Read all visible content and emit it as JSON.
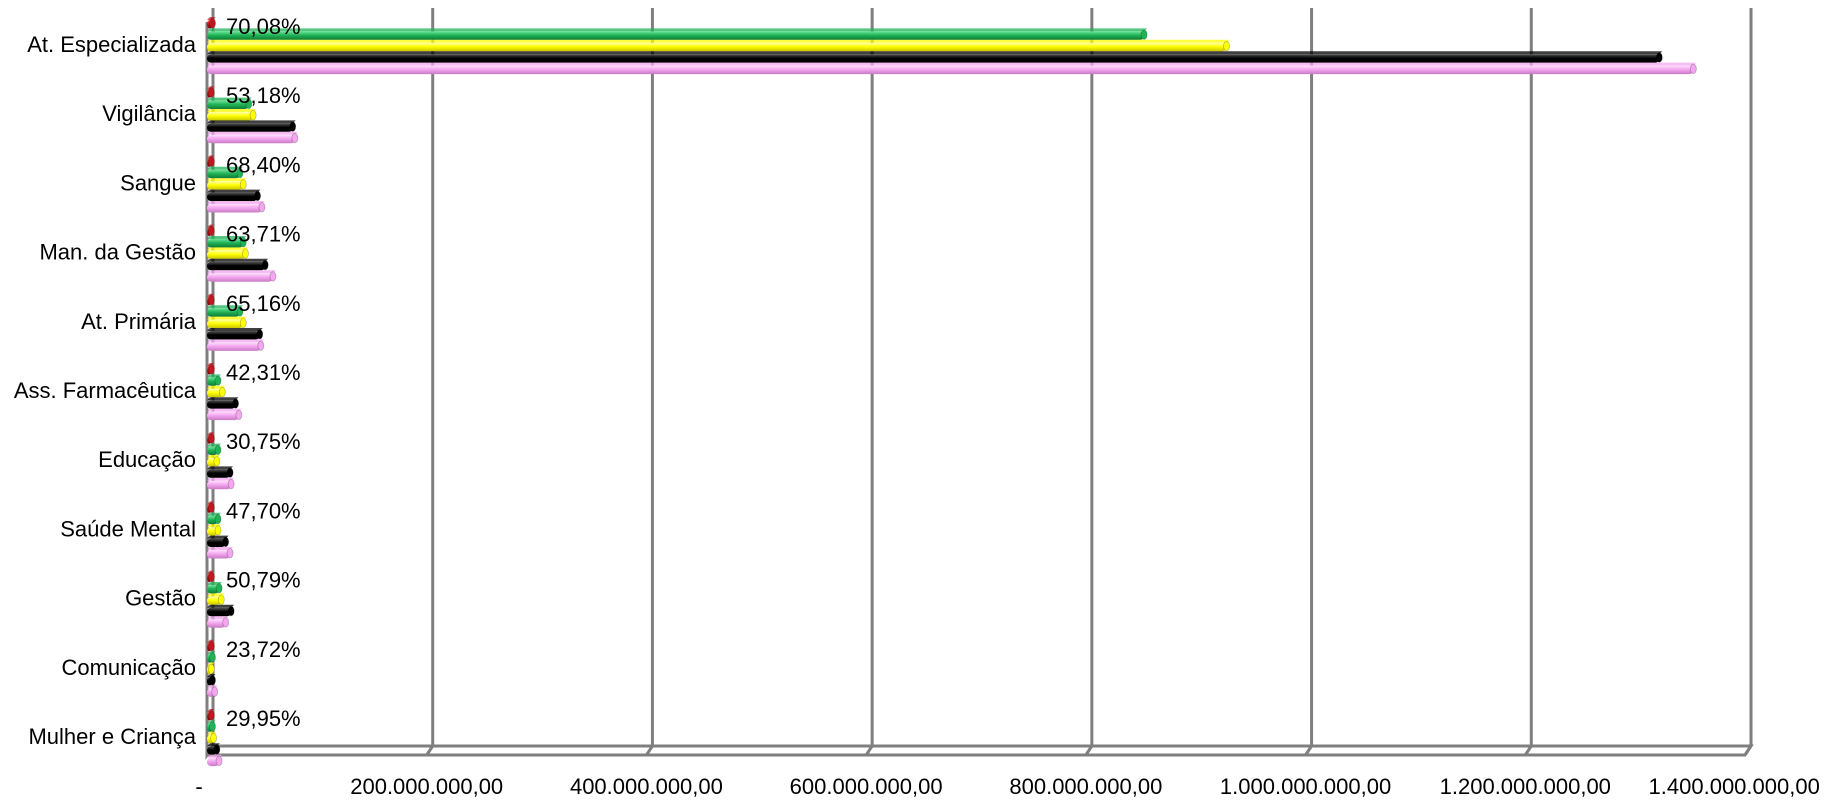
{
  "chart_data": {
    "type": "bar",
    "orientation": "horizontal",
    "categories": [
      "At. Especializada",
      "Vigilância",
      "Sangue",
      "Man. da Gestão",
      "At. Primária",
      "Ass. Farmacêutica",
      "Educação",
      "Saúde Mental",
      "Gestão",
      "Comunicação",
      "Mulher e Criança"
    ],
    "series": [
      {
        "color": "#c0181e",
        "values": [
          5000000,
          4000000,
          4000000,
          4000000,
          4000000,
          4000000,
          4000000,
          4000000,
          4000000,
          4000000,
          4000000
        ]
      },
      {
        "color": "#1fb356",
        "values": [
          853000000,
          38000000,
          30000000,
          33000000,
          30000000,
          10000000,
          10000000,
          10000000,
          11000000,
          5000000,
          5000000
        ]
      },
      {
        "color": "#ffff00",
        "values": [
          928000000,
          42000000,
          33000000,
          35000000,
          33000000,
          14000000,
          9000000,
          10000000,
          13000000,
          4000000,
          6000000
        ]
      },
      {
        "color": "#000000",
        "values": [
          1322000000,
          78000000,
          46000000,
          53000000,
          48000000,
          26000000,
          21000000,
          17000000,
          22000000,
          5000000,
          9000000
        ]
      },
      {
        "color": "#f4a6f0",
        "values": [
          1353000000,
          80000000,
          50000000,
          60000000,
          49000000,
          29000000,
          22000000,
          21000000,
          17000000,
          7000000,
          11000000
        ]
      }
    ],
    "data_labels": [
      "70,08%",
      "53,18%",
      "68,40%",
      "63,71%",
      "65,16%",
      "42,31%",
      "30,75%",
      "47,70%",
      "50,79%",
      "23,72%",
      "29,95%"
    ],
    "x_ticks": [
      0,
      200000000,
      400000000,
      600000000,
      800000000,
      1000000000,
      1200000000,
      1400000000
    ],
    "x_tick_labels": [
      "-",
      "200.000.000,00",
      "400.000.000,00",
      "600.000.000,00",
      "800.000.000,00",
      "1.000.000.000,00",
      "1.200.000.000,00",
      "1.400.000.000,00"
    ],
    "xlim": [
      0,
      1400000000
    ],
    "grid": true,
    "legend": "none"
  }
}
